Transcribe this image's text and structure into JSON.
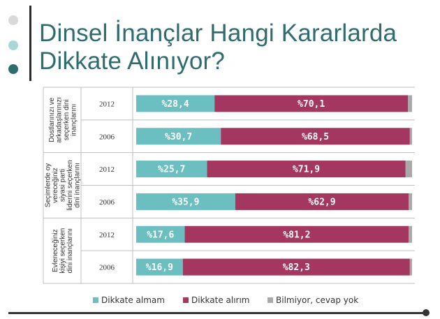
{
  "slide": {
    "title_line1": "Dinsel İnançlar Hangi Kararlarda",
    "title_line2": "Dikkate Alınıyor?"
  },
  "colors": {
    "dikkate_almam": "#6cbfc0",
    "dikkate_alirim": "#a3375f",
    "bilmiyor": "#a9a9a9",
    "title": "#2f6c6e",
    "dot1": "#d9d9d9",
    "dot2": "#a9d7d8",
    "dot3": "#2f6c6e"
  },
  "chart_data": {
    "type": "bar",
    "orientation": "horizontal",
    "stacked": true,
    "groups": [
      {
        "label_lines": [
          "Dostlarınızı ve",
          "arkadaşlarınızı",
          "seçerken dini",
          "inançlarını"
        ],
        "years": [
          "2012",
          "2006"
        ]
      },
      {
        "label_lines": [
          "Seçimlerde oy",
          "vereceğiniz",
          "siyasi parti",
          "liderini seçerken",
          "dini inançlarını"
        ],
        "years": [
          "2012",
          "2006"
        ]
      },
      {
        "label_lines": [
          "Evleneceğiniz",
          "kişiyi seçerken",
          "dini inançlarını"
        ],
        "years": [
          "2012",
          "2006"
        ]
      }
    ],
    "categories": [
      "2012",
      "2006",
      "2012",
      "2006",
      "2012",
      "2006"
    ],
    "series": [
      {
        "name": "Dikkate almam",
        "color": "#6cbfc0",
        "values": [
          28.4,
          30.7,
          25.7,
          35.9,
          17.6,
          16.9
        ],
        "labels": [
          "%28,4",
          "%30,7",
          "%25,7",
          "%35,9",
          "%17,6",
          "%16,9"
        ]
      },
      {
        "name": "Dikkate alırım",
        "color": "#a3375f",
        "values": [
          70.1,
          68.5,
          71.9,
          62.9,
          81.2,
          82.3
        ],
        "labels": [
          "%70,1",
          "%68,5",
          "%71,9",
          "%62,9",
          "%81,2",
          "%82,3"
        ]
      },
      {
        "name": "Bilmiyor, cevap yok",
        "color": "#a9a9a9",
        "values": [
          1.5,
          0.8,
          2.4,
          1.2,
          1.2,
          0.8
        ],
        "labels": [
          "",
          "",
          "",
          "",
          "",
          ""
        ]
      }
    ],
    "xlim": [
      0,
      100
    ],
    "legend_position": "bottom"
  }
}
